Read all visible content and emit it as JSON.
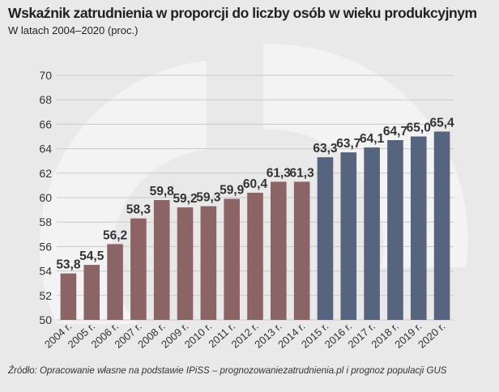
{
  "title": "Wskaźnik zatrudnienia w proporcji do liczby osób w wieku produkcyjnym",
  "subtitle": "W latach 2004–2020 (proc.)",
  "source": "Źródło: Opracowanie własne na podstawie IPiSS – prognozowaniezatrudnienia.pl i prognoz populacji GUS",
  "colors": {
    "historical": "#8b6466",
    "forecast": "#56647e",
    "background": "#e9e9e9"
  },
  "chart_data": {
    "type": "bar",
    "categories": [
      "2004 r.",
      "2005 r.",
      "2006 r.",
      "2007 r.",
      "2008 r.",
      "2009 r.",
      "2010 r.",
      "2011 r.",
      "2012 r.",
      "2013 r.",
      "2014 r.",
      "2015 r.",
      "2016 r.",
      "2017 r.",
      "2018 r.",
      "2019 r.",
      "2020 r."
    ],
    "values": [
      53.8,
      54.5,
      56.2,
      58.3,
      59.8,
      59.2,
      59.3,
      59.9,
      60.4,
      61.3,
      61.3,
      63.3,
      63.7,
      64.1,
      64.7,
      65.0,
      65.4
    ],
    "value_labels": [
      "53,8",
      "54,5",
      "56,2",
      "58,3",
      "59,8",
      "59,2",
      "59,3",
      "59,9",
      "60,4",
      "61,3",
      "61,3",
      "63,3",
      "63,7",
      "64,1",
      "64,7",
      "65,0",
      "65,4"
    ],
    "segments": [
      "historical",
      "historical",
      "historical",
      "historical",
      "historical",
      "historical",
      "historical",
      "historical",
      "historical",
      "historical",
      "historical",
      "forecast",
      "forecast",
      "forecast",
      "forecast",
      "forecast",
      "forecast"
    ],
    "ylim": [
      50,
      70
    ],
    "yticks": [
      50,
      52,
      54,
      56,
      58,
      60,
      62,
      64,
      66,
      68,
      70
    ],
    "grid": true,
    "xlabel": "",
    "ylabel": ""
  }
}
